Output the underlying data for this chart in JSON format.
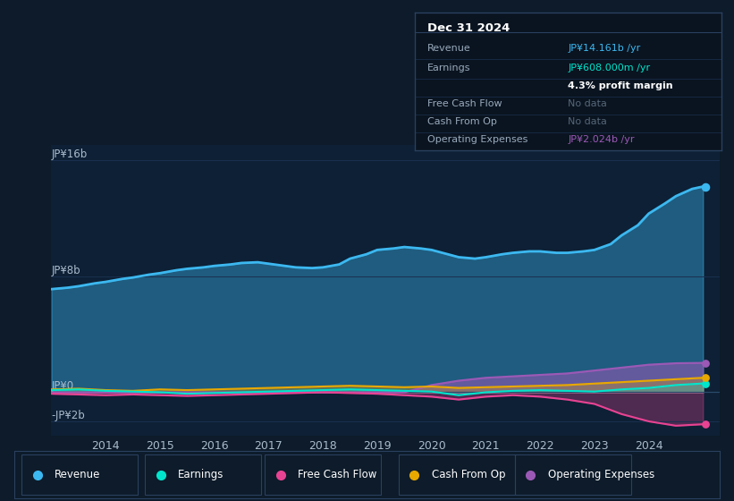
{
  "background_color": "#0d1b2a",
  "chart_bg": "#0d2035",
  "grid_color": "#1a3050",
  "axis_label_color": "#aabbcc",
  "ylim": [
    -3000000000,
    17000000000
  ],
  "series": {
    "Revenue": {
      "color": "#3cb8f0",
      "x": [
        2013.0,
        2013.3,
        2013.5,
        2013.8,
        2014.0,
        2014.3,
        2014.5,
        2014.8,
        2015.0,
        2015.3,
        2015.5,
        2015.8,
        2016.0,
        2016.3,
        2016.5,
        2016.8,
        2017.0,
        2017.3,
        2017.5,
        2017.8,
        2018.0,
        2018.3,
        2018.5,
        2018.8,
        2019.0,
        2019.3,
        2019.5,
        2019.8,
        2020.0,
        2020.3,
        2020.5,
        2020.8,
        2021.0,
        2021.3,
        2021.5,
        2021.8,
        2022.0,
        2022.3,
        2022.5,
        2022.8,
        2023.0,
        2023.3,
        2023.5,
        2023.8,
        2024.0,
        2024.3,
        2024.5,
        2024.8,
        2025.0
      ],
      "y": [
        7100000000,
        7200000000,
        7300000000,
        7500000000,
        7600000000,
        7800000000,
        7900000000,
        8100000000,
        8200000000,
        8400000000,
        8500000000,
        8600000000,
        8700000000,
        8800000000,
        8900000000,
        8950000000,
        8850000000,
        8700000000,
        8600000000,
        8550000000,
        8600000000,
        8800000000,
        9200000000,
        9500000000,
        9800000000,
        9900000000,
        10000000000,
        9900000000,
        9800000000,
        9500000000,
        9300000000,
        9200000000,
        9300000000,
        9500000000,
        9600000000,
        9700000000,
        9700000000,
        9600000000,
        9600000000,
        9700000000,
        9800000000,
        10200000000,
        10800000000,
        11500000000,
        12300000000,
        13000000000,
        13500000000,
        14000000000,
        14161000000
      ]
    },
    "Earnings": {
      "color": "#00e5cc",
      "x": [
        2013.0,
        2013.5,
        2014.0,
        2014.5,
        2015.0,
        2015.5,
        2016.0,
        2016.5,
        2017.0,
        2017.5,
        2018.0,
        2018.5,
        2019.0,
        2019.5,
        2020.0,
        2020.5,
        2021.0,
        2021.5,
        2022.0,
        2022.5,
        2023.0,
        2023.5,
        2024.0,
        2024.5,
        2025.0
      ],
      "y": [
        150000000,
        200000000,
        100000000,
        50000000,
        0,
        -100000000,
        -50000000,
        0,
        50000000,
        100000000,
        150000000,
        200000000,
        150000000,
        100000000,
        50000000,
        -200000000,
        0,
        100000000,
        150000000,
        100000000,
        50000000,
        200000000,
        300000000,
        500000000,
        608000000
      ]
    },
    "Free Cash Flow": {
      "color": "#e84393",
      "x": [
        2013.0,
        2013.5,
        2014.0,
        2014.5,
        2015.0,
        2015.5,
        2016.0,
        2016.5,
        2017.0,
        2017.5,
        2018.0,
        2018.5,
        2019.0,
        2019.5,
        2020.0,
        2020.5,
        2021.0,
        2021.5,
        2022.0,
        2022.5,
        2023.0,
        2023.5,
        2024.0,
        2024.5,
        2025.0
      ],
      "y": [
        -100000000,
        -150000000,
        -200000000,
        -150000000,
        -200000000,
        -250000000,
        -200000000,
        -150000000,
        -100000000,
        -50000000,
        0,
        -50000000,
        -100000000,
        -200000000,
        -300000000,
        -500000000,
        -300000000,
        -200000000,
        -300000000,
        -500000000,
        -800000000,
        -1500000000,
        -2000000000,
        -2300000000,
        -2200000000
      ]
    },
    "Cash From Op": {
      "color": "#e8a800",
      "x": [
        2013.0,
        2013.5,
        2014.0,
        2014.5,
        2015.0,
        2015.5,
        2016.0,
        2016.5,
        2017.0,
        2017.5,
        2018.0,
        2018.5,
        2019.0,
        2019.5,
        2020.0,
        2020.5,
        2021.0,
        2021.5,
        2022.0,
        2022.5,
        2023.0,
        2023.5,
        2024.0,
        2024.5,
        2025.0
      ],
      "y": [
        200000000,
        250000000,
        150000000,
        100000000,
        200000000,
        150000000,
        200000000,
        250000000,
        300000000,
        350000000,
        400000000,
        450000000,
        400000000,
        350000000,
        400000000,
        300000000,
        350000000,
        400000000,
        450000000,
        500000000,
        600000000,
        700000000,
        800000000,
        900000000,
        1000000000
      ]
    },
    "Operating Expenses": {
      "color": "#9b59b6",
      "x": [
        2013.0,
        2013.5,
        2014.0,
        2014.5,
        2015.0,
        2015.5,
        2016.0,
        2016.5,
        2017.0,
        2017.5,
        2018.0,
        2018.5,
        2019.0,
        2019.5,
        2020.0,
        2020.5,
        2021.0,
        2021.5,
        2022.0,
        2022.5,
        2023.0,
        2023.5,
        2024.0,
        2024.5,
        2025.0
      ],
      "y": [
        0,
        0,
        0,
        0,
        0,
        0,
        0,
        0,
        0,
        0,
        0,
        0,
        0,
        0,
        500000000,
        800000000,
        1000000000,
        1100000000,
        1200000000,
        1300000000,
        1500000000,
        1700000000,
        1900000000,
        2000000000,
        2024000000
      ]
    }
  },
  "info_box": {
    "title": "Dec 31 2024",
    "rows": [
      {
        "label": "Revenue",
        "value": "JP¥14.161b /yr",
        "value_color": "#3cb8f0",
        "bold": false
      },
      {
        "label": "Earnings",
        "value": "JP¥608.000m /yr",
        "value_color": "#00e5cc",
        "bold": false
      },
      {
        "label": "",
        "value": "4.3% profit margin",
        "value_color": "#ffffff",
        "bold": true
      },
      {
        "label": "Free Cash Flow",
        "value": "No data",
        "value_color": "#556677",
        "bold": false
      },
      {
        "label": "Cash From Op",
        "value": "No data",
        "value_color": "#556677",
        "bold": false
      },
      {
        "label": "Operating Expenses",
        "value": "JP¥2.024b /yr",
        "value_color": "#9b59b6",
        "bold": false
      }
    ]
  },
  "legend": [
    {
      "label": "Revenue",
      "color": "#3cb8f0"
    },
    {
      "label": "Earnings",
      "color": "#00e5cc"
    },
    {
      "label": "Free Cash Flow",
      "color": "#e84393"
    },
    {
      "label": "Cash From Op",
      "color": "#e8a800"
    },
    {
      "label": "Operating Expenses",
      "color": "#9b59b6"
    }
  ],
  "xlim": [
    2013.0,
    2025.3
  ],
  "xticks": [
    2014,
    2015,
    2016,
    2017,
    2018,
    2019,
    2020,
    2021,
    2022,
    2023,
    2024
  ],
  "ytick_vals": [
    -2000000000,
    0,
    8000000000,
    16000000000
  ],
  "ytick_labels": [
    "-JP¥2b",
    "JP¥0",
    "JP¥8b",
    "JP¥16b"
  ]
}
